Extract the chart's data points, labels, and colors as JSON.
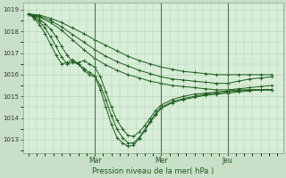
{
  "background_color": "#c8dfc8",
  "plot_bg_color": "#d8eed8",
  "grid_color": "#b0ccb0",
  "line_color": "#1a5c1a",
  "marker_color": "#1a5c1a",
  "xlabel": "Pression niveau de la mer( hPa )",
  "ylim": [
    1012.4,
    1019.3
  ],
  "yticks": [
    1013,
    1014,
    1015,
    1016,
    1017,
    1018,
    1019
  ],
  "x_day_labels": [
    "Mar",
    "Mer",
    "Jeu"
  ],
  "figsize": [
    3.2,
    2.0
  ],
  "dpi": 100,
  "lines": {
    "l1_x": [
      0,
      4,
      8,
      12,
      16,
      20,
      24,
      28,
      32,
      36,
      40,
      44,
      48,
      52,
      56,
      60,
      64,
      68,
      72,
      76,
      80,
      84,
      88
    ],
    "l1_y": [
      1018.8,
      1018.75,
      1018.6,
      1018.4,
      1018.15,
      1017.9,
      1017.6,
      1017.35,
      1017.1,
      1016.85,
      1016.65,
      1016.5,
      1016.35,
      1016.25,
      1016.15,
      1016.1,
      1016.05,
      1016.0,
      1016.0,
      1016.0,
      1016.0,
      1016.0,
      1016.0
    ],
    "l2_x": [
      0,
      4,
      8,
      12,
      16,
      20,
      24,
      28,
      32,
      36,
      40,
      44,
      48,
      52,
      56,
      60,
      64,
      68,
      72,
      76,
      80,
      84,
      88
    ],
    "l2_y": [
      1018.8,
      1018.7,
      1018.5,
      1018.2,
      1017.85,
      1017.5,
      1017.15,
      1016.85,
      1016.6,
      1016.4,
      1016.2,
      1016.05,
      1015.9,
      1015.8,
      1015.75,
      1015.7,
      1015.65,
      1015.6,
      1015.6,
      1015.7,
      1015.8,
      1015.85,
      1015.9
    ],
    "l3_x": [
      0,
      4,
      8,
      12,
      16,
      20,
      24,
      28,
      32,
      36,
      40,
      44,
      48,
      52,
      56,
      60,
      64,
      68,
      72,
      76,
      80,
      84,
      88
    ],
    "l3_y": [
      1018.8,
      1018.65,
      1018.4,
      1018.05,
      1017.6,
      1017.15,
      1016.75,
      1016.45,
      1016.2,
      1016.0,
      1015.85,
      1015.7,
      1015.6,
      1015.5,
      1015.45,
      1015.4,
      1015.35,
      1015.3,
      1015.3,
      1015.35,
      1015.4,
      1015.45,
      1015.5
    ],
    "l4_x": [
      0,
      2,
      4,
      6,
      8,
      10,
      12,
      14,
      16,
      18,
      20,
      22,
      24,
      26,
      28,
      30,
      32,
      34,
      36,
      38,
      40,
      42,
      44,
      46,
      48,
      52,
      56,
      60,
      64,
      68,
      72,
      76,
      80,
      84,
      88
    ],
    "l4_y": [
      1018.8,
      1018.7,
      1018.55,
      1018.35,
      1018.1,
      1017.75,
      1017.3,
      1016.9,
      1016.6,
      1016.55,
      1016.65,
      1016.5,
      1016.35,
      1015.9,
      1015.2,
      1014.5,
      1013.9,
      1013.5,
      1013.2,
      1013.15,
      1013.35,
      1013.65,
      1014.0,
      1014.35,
      1014.6,
      1014.85,
      1015.0,
      1015.1,
      1015.15,
      1015.2,
      1015.25,
      1015.3,
      1015.3,
      1015.3,
      1015.3
    ],
    "l5_x": [
      0,
      2,
      4,
      6,
      8,
      10,
      12,
      14,
      16,
      18,
      20,
      22,
      24,
      26,
      28,
      30,
      32,
      34,
      36,
      38,
      40,
      42,
      44,
      46,
      48,
      52,
      56,
      60,
      64,
      68,
      72,
      76,
      80,
      84,
      88
    ],
    "l5_y": [
      1018.8,
      1018.65,
      1018.45,
      1018.15,
      1017.75,
      1017.3,
      1016.8,
      1016.5,
      1016.55,
      1016.5,
      1016.3,
      1016.1,
      1015.95,
      1015.5,
      1014.85,
      1014.1,
      1013.5,
      1013.1,
      1012.85,
      1012.85,
      1013.1,
      1013.45,
      1013.85,
      1014.2,
      1014.5,
      1014.75,
      1014.9,
      1015.0,
      1015.1,
      1015.15,
      1015.2,
      1015.25,
      1015.3,
      1015.3,
      1015.3
    ],
    "l6_x": [
      0,
      2,
      4,
      6,
      8,
      10,
      12,
      14,
      16,
      18,
      20,
      22,
      24,
      26,
      28,
      30,
      32,
      34,
      36,
      38,
      40,
      42,
      44,
      46,
      48,
      52,
      56,
      60,
      64,
      68,
      72,
      76,
      80,
      84,
      88
    ],
    "l6_y": [
      1018.8,
      1018.6,
      1018.3,
      1017.9,
      1017.4,
      1016.9,
      1016.5,
      1016.55,
      1016.7,
      1016.5,
      1016.2,
      1016.0,
      1015.9,
      1015.3,
      1014.5,
      1013.7,
      1013.1,
      1012.85,
      1012.7,
      1012.75,
      1013.05,
      1013.4,
      1013.8,
      1014.15,
      1014.45,
      1014.7,
      1014.85,
      1014.95,
      1015.05,
      1015.1,
      1015.15,
      1015.2,
      1015.25,
      1015.3,
      1015.3
    ]
  }
}
